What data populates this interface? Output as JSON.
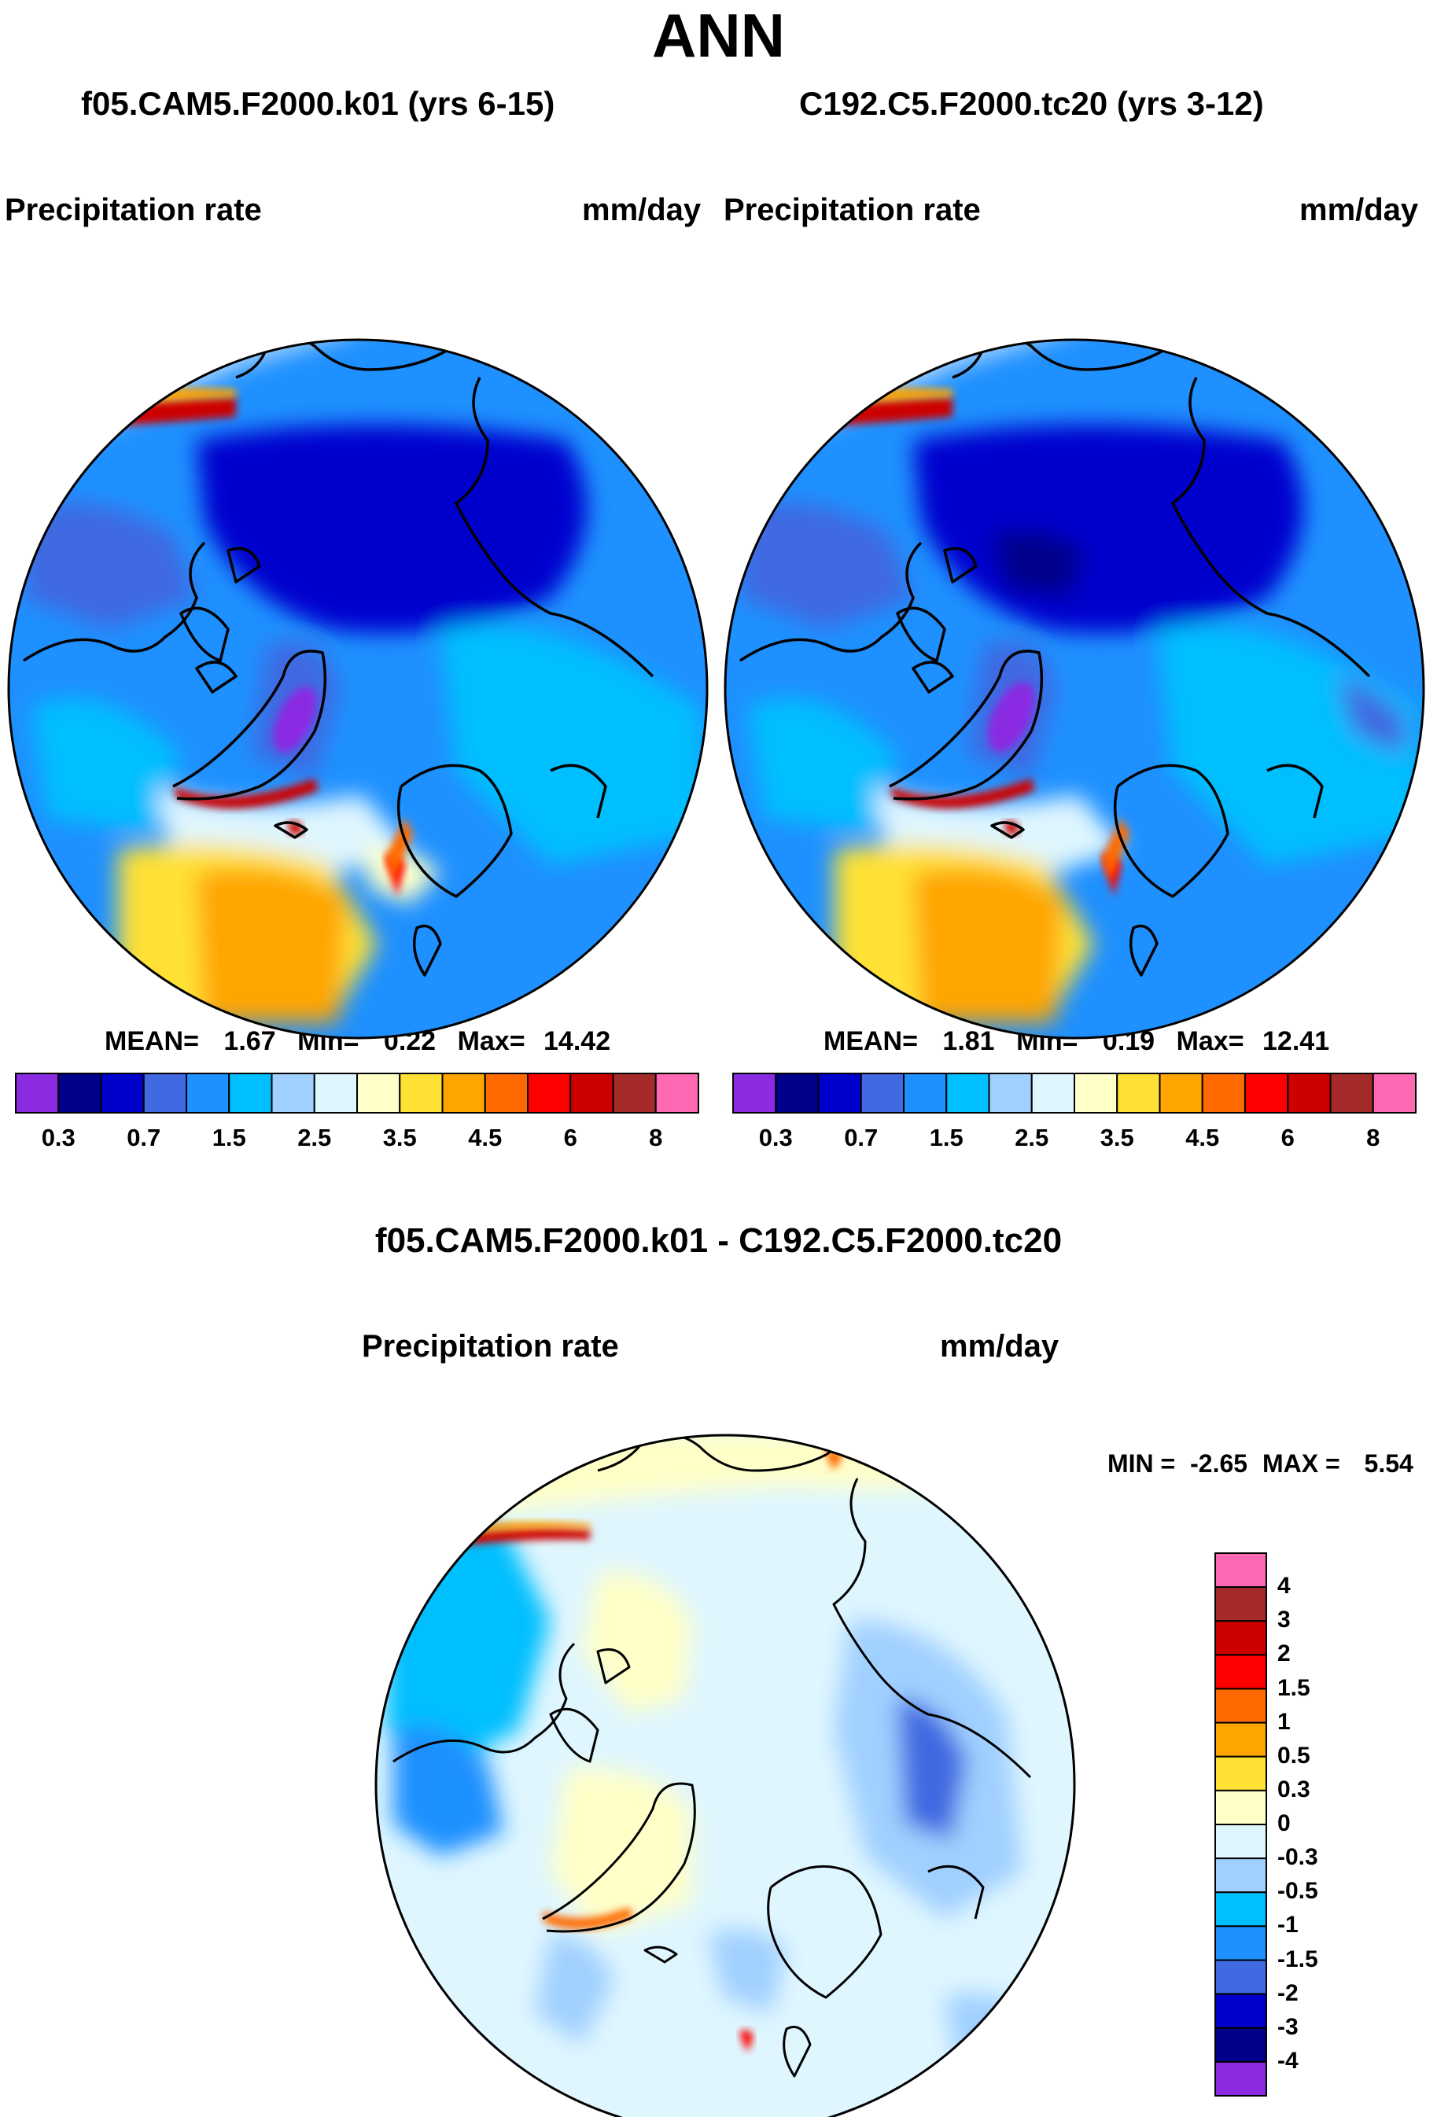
{
  "figure": {
    "title": "ANN",
    "panel_left": {
      "title": "f05.CAM5.F2000.k01 (yrs 6-15)",
      "variable": "Precipitation rate",
      "units": "mm/day",
      "mean_label": "MEAN=",
      "mean": "1.67",
      "min_label": "Min=",
      "min": "0.22",
      "max_label": "Max=",
      "max": "14.42"
    },
    "panel_right": {
      "title": "C192.C5.F2000.tc20 (yrs 3-12)",
      "variable": "Precipitation rate",
      "units": "mm/day",
      "mean_label": "MEAN=",
      "mean": "1.81",
      "min_label": "Min=",
      "min": "0.19",
      "max_label": "Max=",
      "max": "12.41"
    },
    "panel_diff": {
      "title": "f05.CAM5.F2000.k01 - C192.C5.F2000.tc20",
      "variable": "Precipitation rate",
      "units": "mm/day",
      "min_label": "MIN =",
      "min": "-2.65",
      "max_label": "MAX =",
      "max": "5.54"
    }
  },
  "chart_data": [
    {
      "type": "heatmap",
      "projection": "north polar stereographic",
      "title": "f05.CAM5.F2000.k01 (yrs 6-15)",
      "variable": "Precipitation rate",
      "units": "mm/day",
      "mean": 1.67,
      "min": 0.22,
      "max": 14.42,
      "colorbar_ticks": [
        "0.3",
        "0.7",
        "1.5",
        "2.5",
        "3.5",
        "4.5",
        "6",
        "8"
      ],
      "levels": [
        0.2,
        0.3,
        0.5,
        0.7,
        1,
        1.5,
        2,
        2.5,
        3,
        3.5,
        4,
        4.5,
        5,
        6,
        7,
        8
      ],
      "colors": [
        "#8a2be2",
        "#00008b",
        "#0000cd",
        "#4169e1",
        "#1e90ff",
        "#00bfff",
        "#a0d0ff",
        "#dff6ff",
        "#ffffc8",
        "#ffe135",
        "#ffa500",
        "#ff6a00",
        "#ff0000",
        "#cd0000",
        "#a52a2a",
        "#ff69b4"
      ]
    },
    {
      "type": "heatmap",
      "projection": "north polar stereographic",
      "title": "C192.C5.F2000.tc20 (yrs 3-12)",
      "variable": "Precipitation rate",
      "units": "mm/day",
      "mean": 1.81,
      "min": 0.19,
      "max": 12.41,
      "colorbar_ticks": [
        "0.3",
        "0.7",
        "1.5",
        "2.5",
        "3.5",
        "4.5",
        "6",
        "8"
      ],
      "levels": [
        0.2,
        0.3,
        0.5,
        0.7,
        1,
        1.5,
        2,
        2.5,
        3,
        3.5,
        4,
        4.5,
        5,
        6,
        7,
        8
      ],
      "colors": [
        "#8a2be2",
        "#00008b",
        "#0000cd",
        "#4169e1",
        "#1e90ff",
        "#00bfff",
        "#a0d0ff",
        "#dff6ff",
        "#ffffc8",
        "#ffe135",
        "#ffa500",
        "#ff6a00",
        "#ff0000",
        "#cd0000",
        "#a52a2a",
        "#ff69b4"
      ]
    },
    {
      "type": "heatmap",
      "projection": "north polar stereographic",
      "title": "f05.CAM5.F2000.k01 - C192.C5.F2000.tc20",
      "variable": "Precipitation rate",
      "units": "mm/day",
      "min": -2.65,
      "max": 5.54,
      "colorbar_labels": [
        "4",
        "3",
        "2",
        "1.5",
        "1",
        "0.5",
        "0.3",
        "0",
        "-0.3",
        "-0.5",
        "-1",
        "-1.5",
        "-2",
        "-3",
        "-4"
      ],
      "colors": [
        "#ff69b4",
        "#a52a2a",
        "#cd0000",
        "#ff0000",
        "#ff6a00",
        "#ffa500",
        "#ffe135",
        "#ffffc8",
        "#dff6ff",
        "#a0d0ff",
        "#00bfff",
        "#1e90ff",
        "#4169e1",
        "#0000cd",
        "#00008b",
        "#8a2be2"
      ]
    }
  ]
}
